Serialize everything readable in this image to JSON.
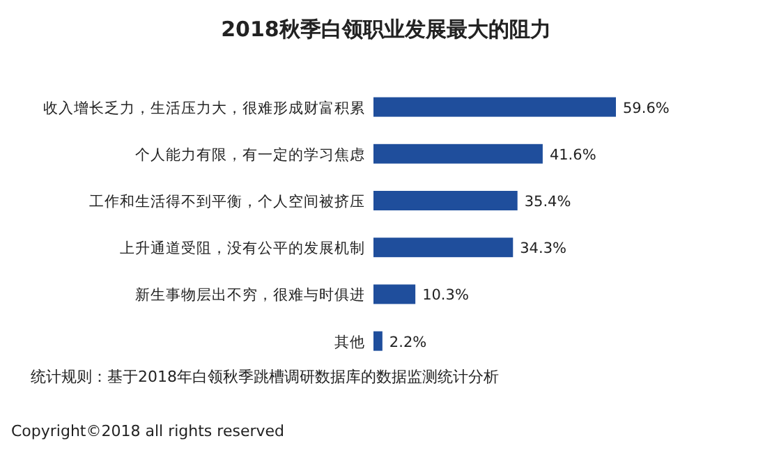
{
  "chart_data": {
    "type": "bar",
    "orientation": "horizontal",
    "title": "2018秋季白领职业发展最大的阻力",
    "categories": [
      "收入增长乏力，生活压力大，很难形成财富积累",
      "个人能力有限，有一定的学习焦虑",
      "工作和生活得不到平衡，个人空间被挤压",
      "上升通道受阻，没有公平的发展机制",
      "新生事物层出不穷，很难与时俱进",
      "其他"
    ],
    "values": [
      59.6,
      41.6,
      35.4,
      34.3,
      10.3,
      2.2
    ],
    "value_labels": [
      "59.6%",
      "41.6%",
      "35.4%",
      "34.3%",
      "10.3%",
      "2.2%"
    ],
    "color": "#1f4e9c",
    "annotations": [
      "统计规则：基于2018年白领秋季跳槽调研数据库的数据监测统计分析",
      "Copyright©2018 all rights reserved"
    ]
  }
}
